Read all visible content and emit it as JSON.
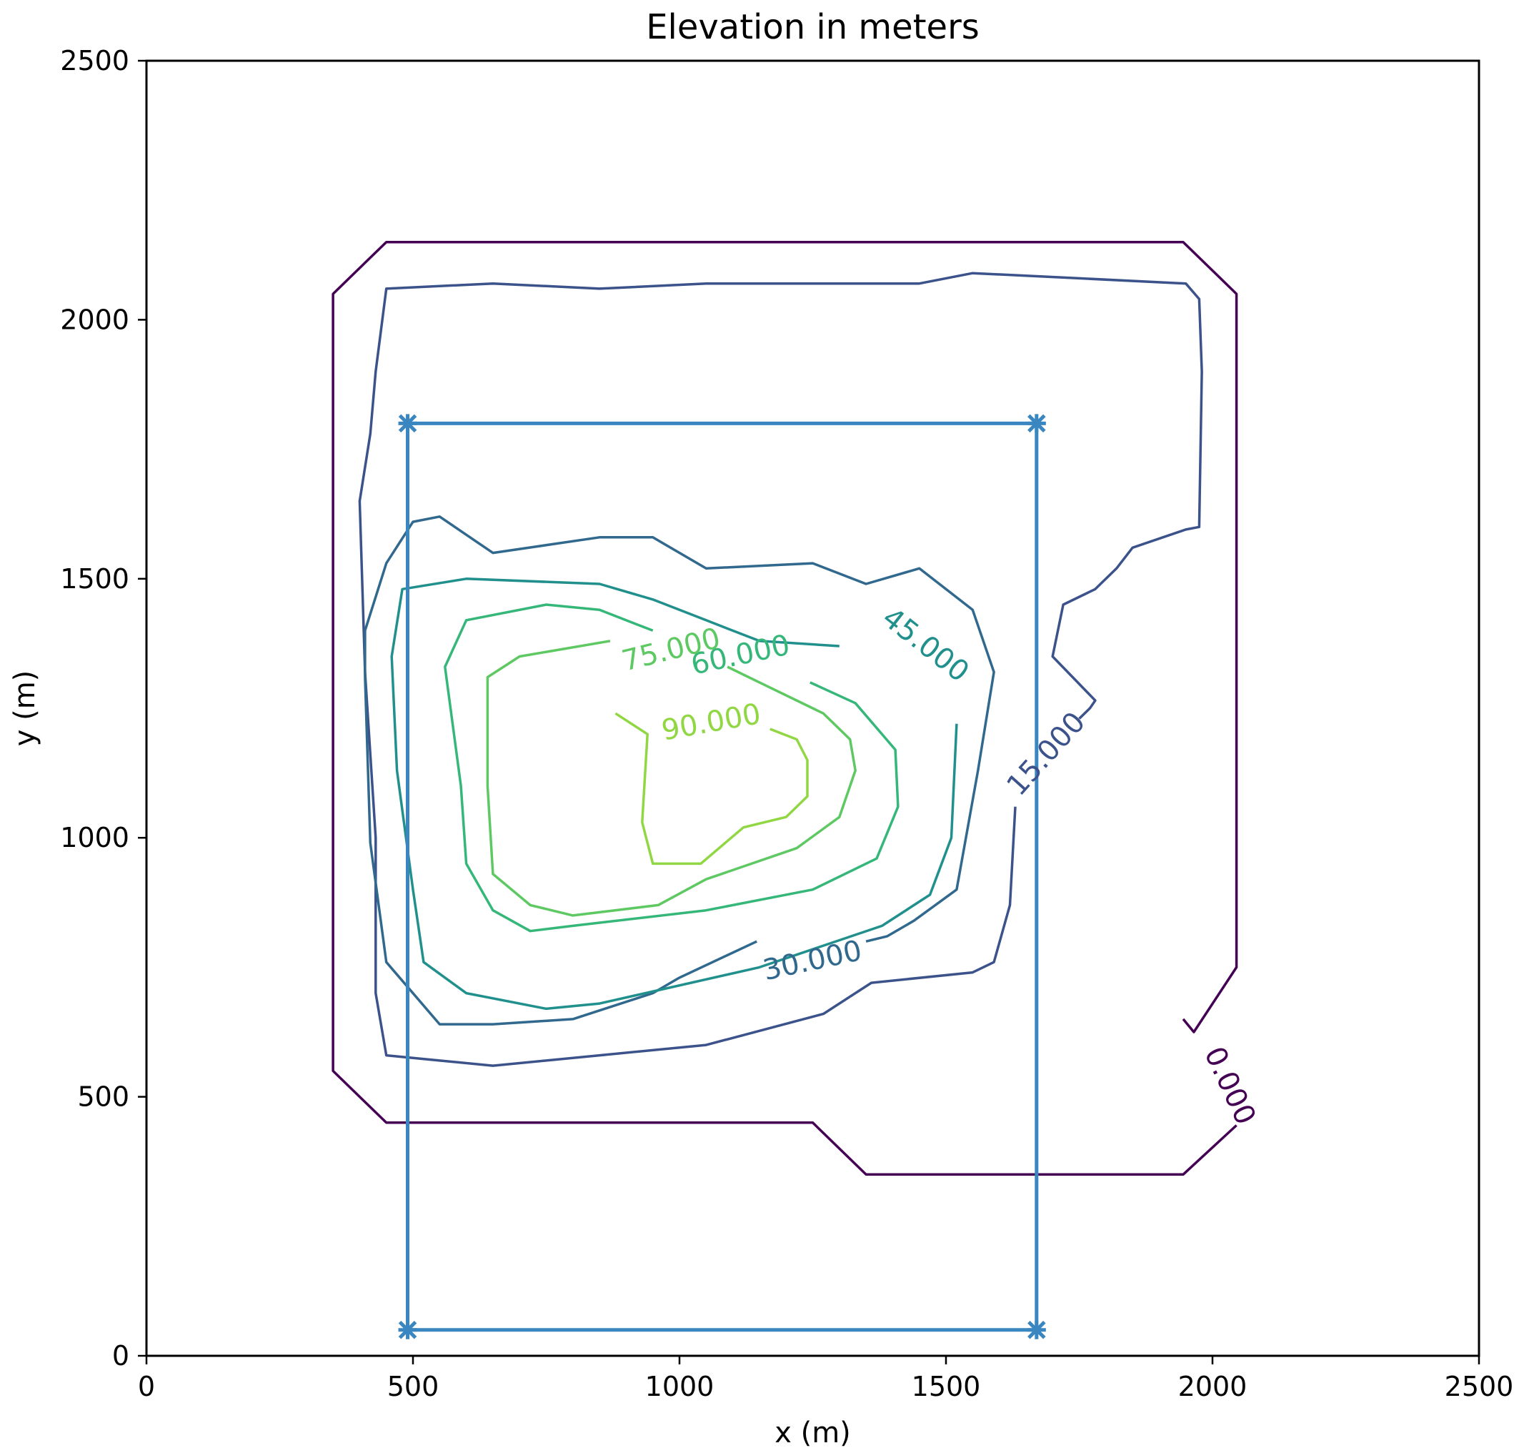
{
  "chart_data": {
    "type": "contour",
    "title": "Elevation in meters",
    "xlabel": "x (m)",
    "ylabel": "y (m)",
    "xlim": [
      0,
      2500
    ],
    "ylim": [
      0,
      2500
    ],
    "xticks": [
      0,
      500,
      1000,
      1500,
      2000,
      2500
    ],
    "yticks": [
      0,
      500,
      1000,
      1500,
      2000,
      2500
    ],
    "grid": false,
    "contours": [
      {
        "level": 0,
        "label": "0.000",
        "color": "#440154",
        "label_at": [
          2030,
          520
        ],
        "label_angle": 65,
        "points": [
          [
            1945,
            650
          ],
          [
            1965,
            625
          ],
          [
            2045,
            750
          ],
          [
            2045,
            2050
          ],
          [
            1945,
            2150
          ],
          [
            450,
            2150
          ],
          [
            350,
            2050
          ],
          [
            350,
            550
          ],
          [
            450,
            450
          ],
          [
            1250,
            450
          ],
          [
            1350,
            350
          ],
          [
            1945,
            350
          ],
          [
            2045,
            445
          ]
        ]
      },
      {
        "level": 15,
        "label": "15.000",
        "color": "#3b528b",
        "label_at": [
          1690,
          1160
        ],
        "label_angle": -48,
        "points": [
          [
            1630,
            1060
          ],
          [
            1620,
            870
          ],
          [
            1590,
            760
          ],
          [
            1550,
            740
          ],
          [
            1360,
            720
          ],
          [
            1270,
            660
          ],
          [
            1050,
            600
          ],
          [
            850,
            580
          ],
          [
            650,
            560
          ],
          [
            550,
            570
          ],
          [
            450,
            580
          ],
          [
            430,
            700
          ],
          [
            430,
            1000
          ],
          [
            410,
            1320
          ],
          [
            400,
            1650
          ],
          [
            420,
            1780
          ],
          [
            430,
            1900
          ],
          [
            450,
            2060
          ],
          [
            650,
            2070
          ],
          [
            850,
            2060
          ],
          [
            1050,
            2070
          ],
          [
            1450,
            2070
          ],
          [
            1550,
            2090
          ],
          [
            1750,
            2080
          ],
          [
            1950,
            2070
          ],
          [
            1975,
            2040
          ],
          [
            1980,
            1900
          ],
          [
            1975,
            1600
          ],
          [
            1950,
            1595
          ],
          [
            1850,
            1560
          ],
          [
            1820,
            1520
          ],
          [
            1780,
            1480
          ],
          [
            1720,
            1450
          ],
          [
            1700,
            1350
          ],
          [
            1780,
            1265
          ],
          [
            1770,
            1250
          ],
          [
            1750,
            1230
          ]
        ]
      },
      {
        "level": 30,
        "label": "30.000",
        "color": "#31688e",
        "label_at": [
          1250,
          760
        ],
        "label_angle": -12,
        "points": [
          [
            1145,
            800
          ],
          [
            1000,
            730
          ],
          [
            950,
            700
          ],
          [
            800,
            650
          ],
          [
            650,
            640
          ],
          [
            550,
            640
          ],
          [
            450,
            760
          ],
          [
            420,
            990
          ],
          [
            410,
            1310
          ],
          [
            410,
            1400
          ],
          [
            450,
            1530
          ],
          [
            500,
            1610
          ],
          [
            550,
            1620
          ],
          [
            650,
            1550
          ],
          [
            850,
            1580
          ],
          [
            950,
            1580
          ],
          [
            1050,
            1520
          ],
          [
            1250,
            1530
          ],
          [
            1350,
            1490
          ],
          [
            1450,
            1520
          ],
          [
            1550,
            1440
          ],
          [
            1590,
            1320
          ],
          [
            1560,
            1130
          ],
          [
            1520,
            900
          ],
          [
            1440,
            840
          ],
          [
            1390,
            810
          ],
          [
            1350,
            800
          ]
        ]
      },
      {
        "level": 45,
        "label": "45.000",
        "color": "#21908d",
        "label_at": [
          1460,
          1370
        ],
        "label_angle": 38,
        "points": [
          [
            1520,
            1220
          ],
          [
            1510,
            1000
          ],
          [
            1470,
            890
          ],
          [
            1380,
            830
          ],
          [
            1150,
            750
          ],
          [
            850,
            680
          ],
          [
            750,
            670
          ],
          [
            600,
            700
          ],
          [
            520,
            760
          ],
          [
            500,
            900
          ],
          [
            470,
            1130
          ],
          [
            460,
            1350
          ],
          [
            480,
            1480
          ],
          [
            600,
            1500
          ],
          [
            850,
            1490
          ],
          [
            950,
            1460
          ],
          [
            1050,
            1420
          ],
          [
            1150,
            1380
          ],
          [
            1300,
            1370
          ]
        ]
      },
      {
        "level": 60,
        "label": "60.000",
        "color": "#35b779",
        "label_at": [
          1115,
          1350
        ],
        "label_angle": -12,
        "points": [
          [
            1245,
            1300
          ],
          [
            1330,
            1260
          ],
          [
            1405,
            1170
          ],
          [
            1410,
            1060
          ],
          [
            1370,
            960
          ],
          [
            1250,
            900
          ],
          [
            1050,
            860
          ],
          [
            800,
            830
          ],
          [
            720,
            820
          ],
          [
            650,
            860
          ],
          [
            600,
            950
          ],
          [
            590,
            1100
          ],
          [
            560,
            1330
          ],
          [
            600,
            1420
          ],
          [
            750,
            1450
          ],
          [
            850,
            1440
          ],
          [
            950,
            1400
          ]
        ]
      },
      {
        "level": 75,
        "label": "75.000",
        "color": "#5ec962",
        "label_at": [
          985,
          1360
        ],
        "label_angle": -14,
        "points": [
          [
            1090,
            1330
          ],
          [
            1150,
            1300
          ],
          [
            1270,
            1240
          ],
          [
            1320,
            1190
          ],
          [
            1330,
            1130
          ],
          [
            1300,
            1040
          ],
          [
            1220,
            980
          ],
          [
            1050,
            920
          ],
          [
            960,
            870
          ],
          [
            800,
            850
          ],
          [
            720,
            870
          ],
          [
            650,
            930
          ],
          [
            640,
            1100
          ],
          [
            640,
            1310
          ],
          [
            700,
            1350
          ],
          [
            870,
            1380
          ]
        ]
      },
      {
        "level": 90,
        "label": "90.000",
        "color": "#90d743",
        "label_at": [
          1060,
          1220
        ],
        "label_angle": -10,
        "points": [
          [
            880,
            1240
          ],
          [
            940,
            1200
          ],
          [
            930,
            1030
          ],
          [
            950,
            950
          ],
          [
            1040,
            950
          ],
          [
            1120,
            1020
          ],
          [
            1200,
            1040
          ],
          [
            1240,
            1080
          ],
          [
            1240,
            1150
          ],
          [
            1220,
            1190
          ],
          [
            1170,
            1210
          ]
        ]
      }
    ],
    "boundary_box": {
      "color": "#3a86c0",
      "points": [
        [
          490,
          1800
        ],
        [
          1670,
          1800
        ],
        [
          1670,
          50
        ],
        [
          490,
          50
        ],
        [
          490,
          1800
        ]
      ],
      "markers": [
        [
          490,
          1800
        ],
        [
          1670,
          1800
        ],
        [
          490,
          50
        ],
        [
          1670,
          50
        ]
      ]
    }
  }
}
